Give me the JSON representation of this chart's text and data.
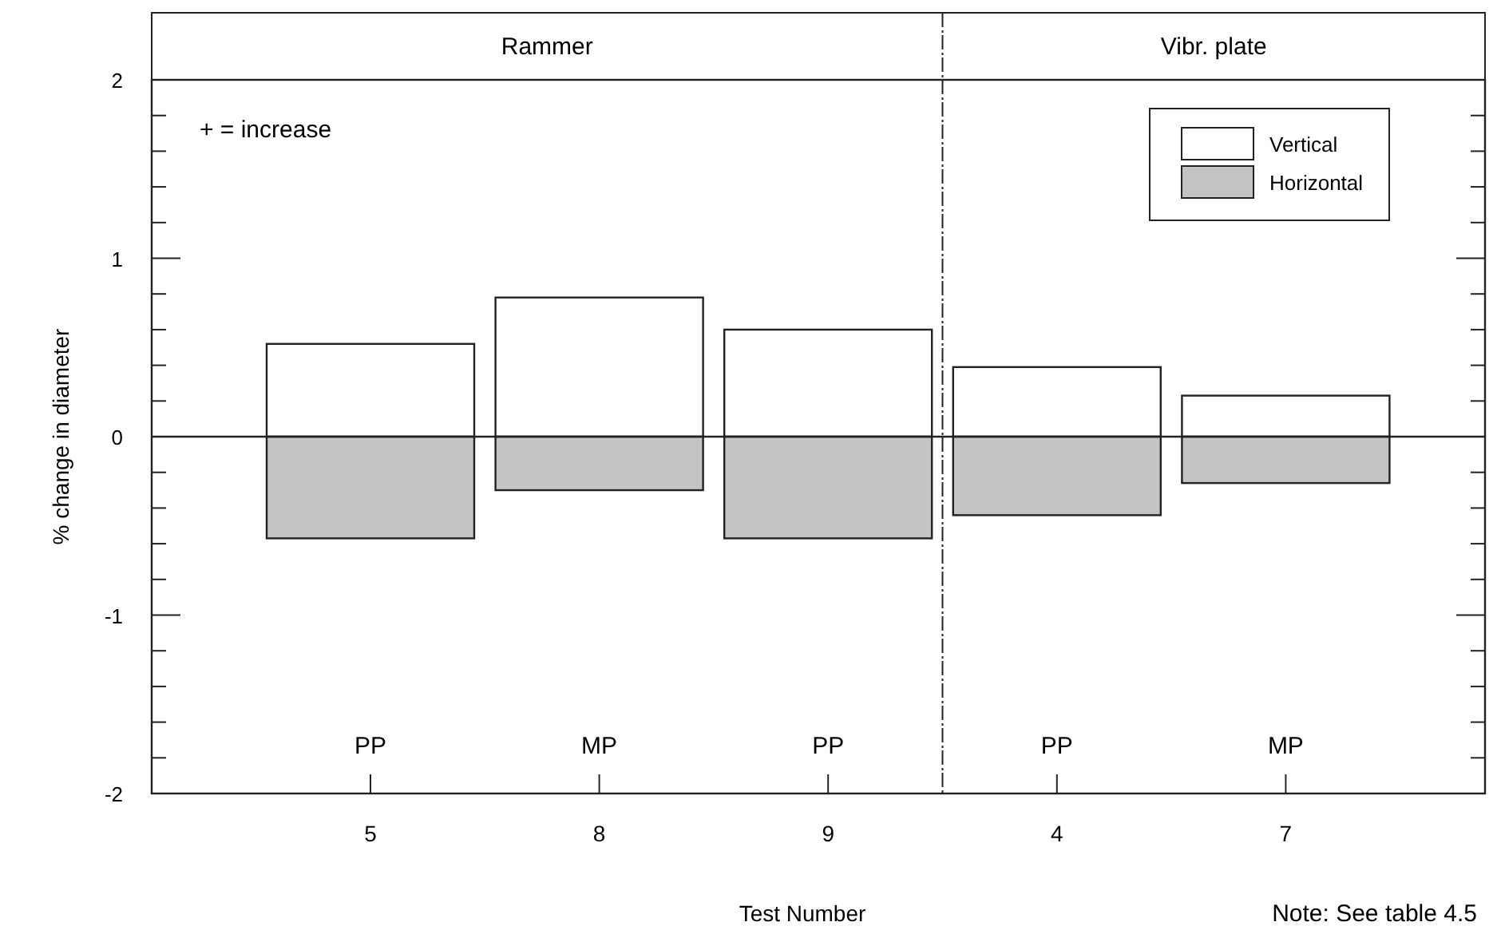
{
  "chart_data": {
    "type": "bar",
    "xlabel": "Test Number",
    "ylabel": "% change in diameter",
    "categories": [
      "5",
      "8",
      "9",
      "4",
      "7"
    ],
    "stacked": true,
    "series": [
      {
        "name": "Vertical",
        "color": "#ffffff",
        "values": [
          0.52,
          0.78,
          0.6,
          0.39,
          0.23
        ]
      },
      {
        "name": "Horizontal",
        "color": "#c4c4c4",
        "values": [
          -0.57,
          -0.3,
          -0.57,
          -0.44,
          -0.26
        ]
      }
    ],
    "ylim": [
      -2,
      2
    ],
    "yticks": [
      -2,
      {
        "value": -1.8,
        "label": null
      },
      {
        "value": -1.6,
        "label": null
      },
      {
        "value": -1.4,
        "label": null
      },
      {
        "value": -1.2,
        "label": null
      },
      -1,
      {
        "value": -0.8,
        "label": null
      },
      {
        "value": -0.6,
        "label": null
      },
      {
        "value": -0.4,
        "label": null
      },
      {
        "value": -0.2,
        "label": null
      },
      0,
      {
        "value": 0.2,
        "label": null
      },
      {
        "value": 0.4,
        "label": null
      },
      {
        "value": 0.6,
        "label": null
      },
      {
        "value": 0.8,
        "label": null
      },
      1,
      {
        "value": 1.2,
        "label": null
      },
      {
        "value": 1.4,
        "label": null
      },
      {
        "value": 1.6,
        "label": null
      },
      {
        "value": 1.8,
        "label": null
      },
      2
    ],
    "legend": "top right",
    "annotations": [
      "Rammer",
      "Vibr. plate",
      "+ = increase",
      "PP",
      "MP",
      "PP",
      "PP",
      "MP",
      "Note:  See table 4.5"
    ]
  }
}
